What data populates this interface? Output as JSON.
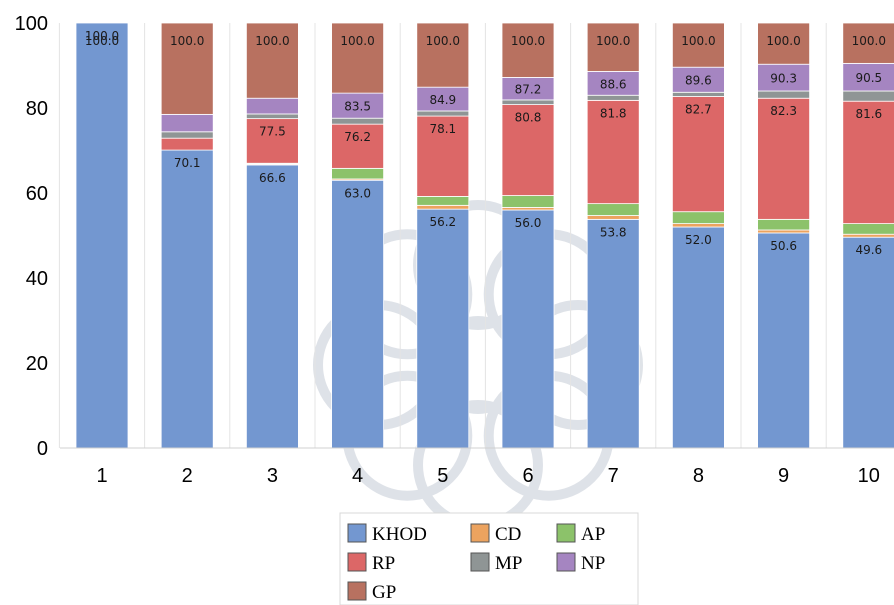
{
  "chart_data": {
    "type": "bar",
    "stacked": true,
    "categories": [
      "1",
      "2",
      "3",
      "4",
      "5",
      "6",
      "7",
      "8",
      "9",
      "10"
    ],
    "ylim": [
      0,
      100
    ],
    "yticks": [
      0,
      20,
      40,
      60,
      80,
      100
    ],
    "grid": true,
    "legend_position": "bottom",
    "colors": {
      "KHOD": "#7397d0",
      "CD": "#eca35f",
      "AP": "#8cc26a",
      "RP": "#dc6767",
      "MP": "#8f9595",
      "NP": "#a585c1",
      "GP": "#b87160"
    },
    "cumulative": {
      "KHOD": [
        100.0,
        70.1,
        66.6,
        63.0,
        56.2,
        56.0,
        53.8,
        52.0,
        50.6,
        49.6
      ],
      "CD": [
        100.0,
        70.1,
        66.8,
        63.3,
        57.1,
        56.6,
        54.7,
        52.8,
        51.3,
        50.3
      ],
      "AP": [
        100.0,
        70.1,
        67.0,
        65.8,
        59.2,
        59.4,
        57.5,
        55.6,
        53.8,
        52.8
      ],
      "RP": [
        100.0,
        72.9,
        77.5,
        76.2,
        78.1,
        80.8,
        81.8,
        82.7,
        82.3,
        81.6
      ],
      "MP": [
        100.0,
        74.4,
        78.6,
        77.6,
        79.3,
        81.9,
        83.0,
        83.7,
        84.0,
        84.0
      ],
      "NP": [
        100.0,
        78.5,
        82.3,
        83.5,
        84.9,
        87.2,
        88.6,
        89.6,
        90.3,
        90.5
      ],
      "GP": [
        100.0,
        100.0,
        100.0,
        100.0,
        100.0,
        100.0,
        100.0,
        100.0,
        100.0,
        100.0
      ]
    },
    "data_labels": [
      {
        "series": "KHOD",
        "values": [
          "100.0",
          "70.1",
          "66.6",
          "63.0",
          "56.2",
          "56.0",
          "53.8",
          "52.0",
          "50.6",
          "49.6"
        ]
      },
      {
        "series": "RP",
        "values": [
          "",
          "",
          "77.5",
          "76.2",
          "78.1",
          "80.8",
          "81.8",
          "82.7",
          "82.3",
          "81.6"
        ]
      },
      {
        "series": "NP",
        "values": [
          "",
          "",
          "",
          "83.5",
          "84.9",
          "87.2",
          "88.6",
          "89.6",
          "90.3",
          "90.5"
        ]
      },
      {
        "series": "GP",
        "values": [
          "100.0",
          "100.0",
          "100.0",
          "100.0",
          "100.0",
          "100.0",
          "100.0",
          "100.0",
          "100.0",
          "100.0"
        ]
      }
    ],
    "legend": [
      "KHOD",
      "CD",
      "AP",
      "RP",
      "MP",
      "NP",
      "GP"
    ],
    "title": "",
    "xlabel": "",
    "ylabel": ""
  }
}
